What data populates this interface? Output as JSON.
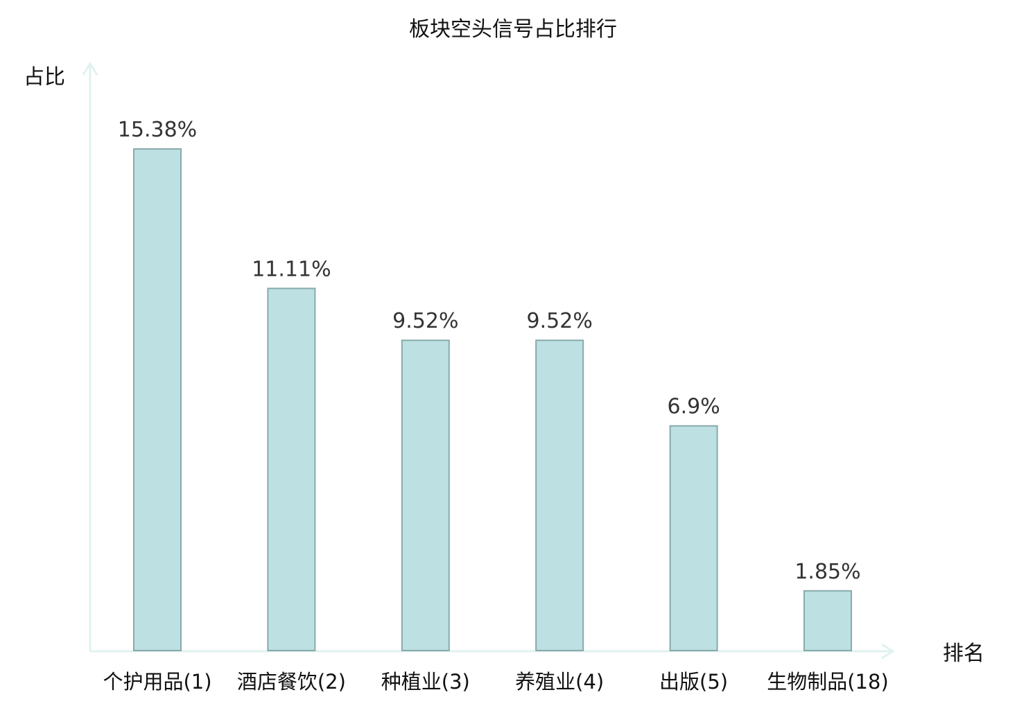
{
  "chart_data": {
    "type": "bar",
    "title": "板块空头信号占比排行",
    "ylabel": "占比",
    "xlabel": "排名",
    "categories": [
      "个护用品(1)",
      "酒店餐饮(2)",
      "种植业(3)",
      "养殖业(4)",
      "出版(5)",
      "生物制品(18)"
    ],
    "values": [
      15.38,
      11.11,
      9.52,
      9.52,
      6.9,
      1.85
    ],
    "value_labels": [
      "15.38%",
      "11.11%",
      "9.52%",
      "9.52%",
      "6.9%",
      "1.85%"
    ],
    "highlight_index": 5,
    "grid": false,
    "legend": "none",
    "unit": "%"
  },
  "colors": {
    "bar_fill": "#bde0e2",
    "bar_stroke": "#88a9ab",
    "axis": "#e0f2ef",
    "text": "#111111",
    "value_text": "#333333",
    "highlight_text": "#e8000b"
  }
}
